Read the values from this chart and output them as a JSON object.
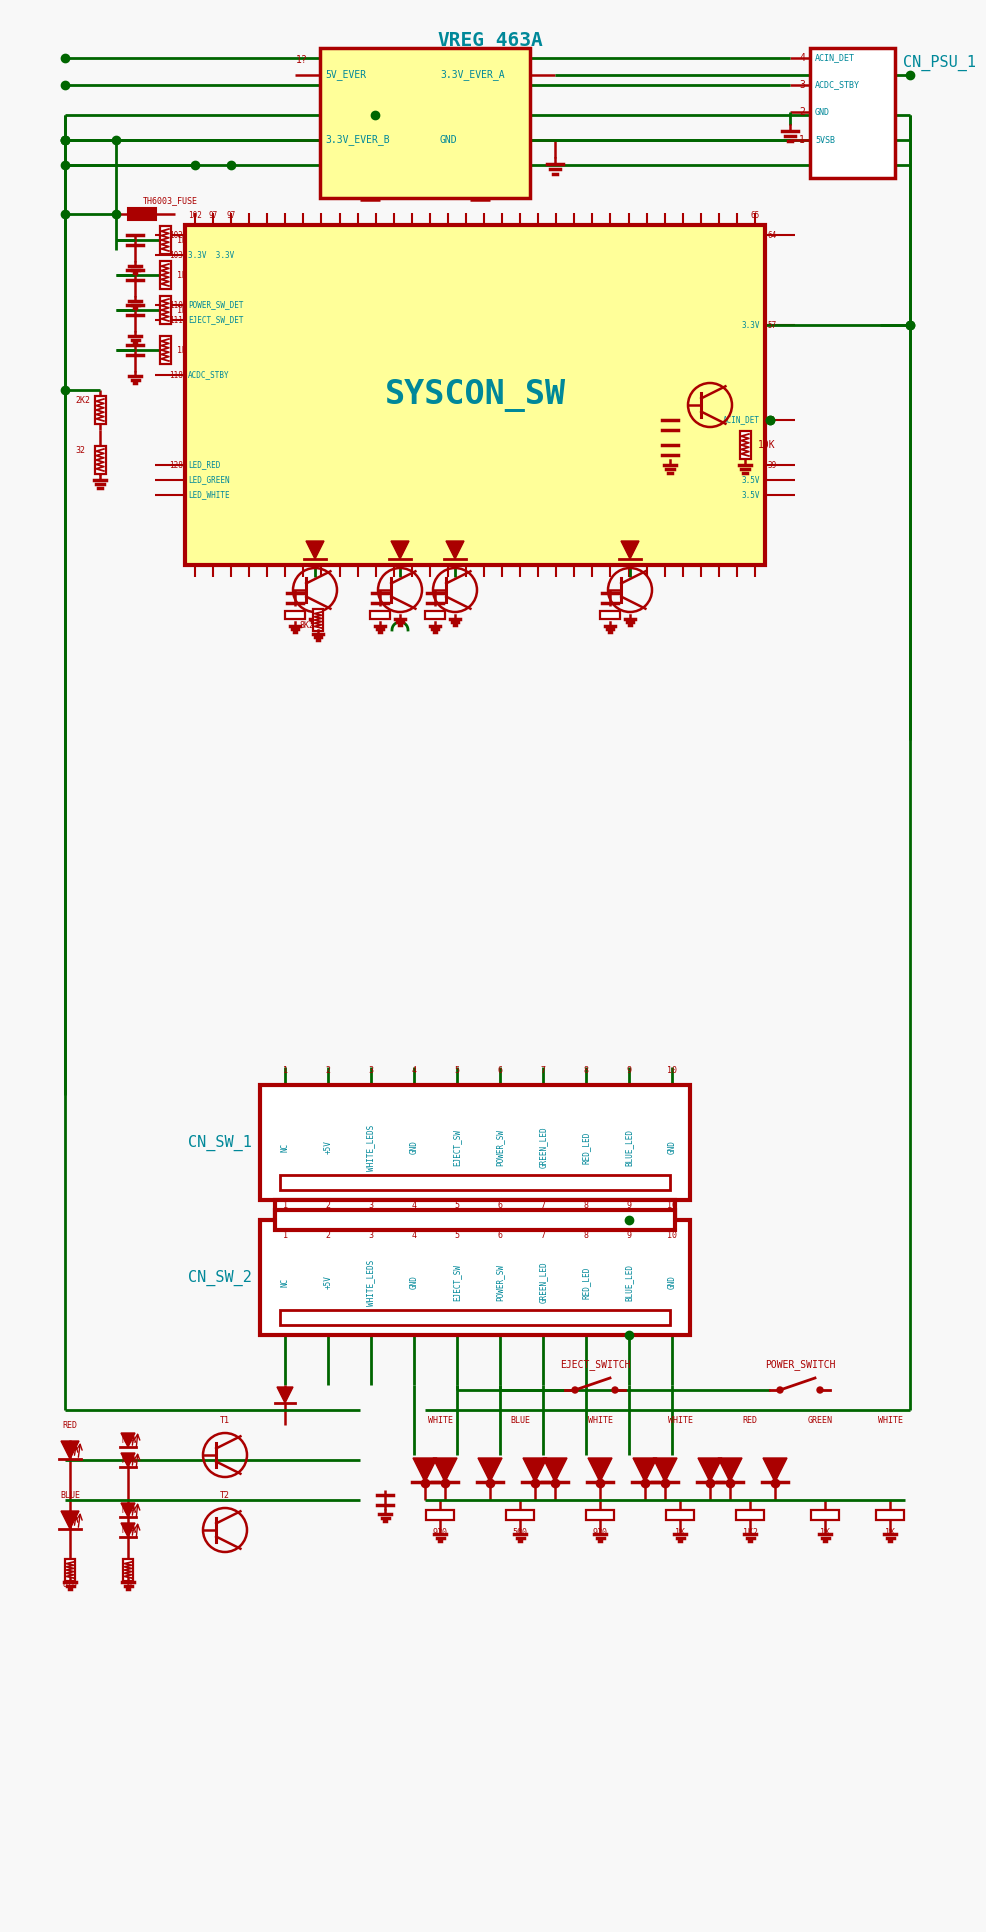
{
  "bg_color": "#ffffff",
  "wire_green": "#006600",
  "wire_red": "#aa0000",
  "ic_fill": "#ffff99",
  "ic_border": "#aa0000",
  "text_cyan": "#008899",
  "text_red": "#aa0000",
  "title": "VREG_463A",
  "syscon_label": "SYSCON_SW",
  "cn_psu_label": "CN_PSU_1",
  "cn_sw1_label": "CN_SW_1",
  "cn_sw2_label": "CN_SW_2",
  "eject_sw_label": "EJECT_SWITCH",
  "power_sw_label": "POWER_SWITCH",
  "fuse_label": "TH6003_FUSE",
  "pin_labels_sw": [
    "NC",
    "+5V",
    "WHITE_LEDS",
    "GND",
    "EJECT_SW",
    "POWER_SW",
    "GREEN_LED",
    "RED_LED",
    "BLUE_LED",
    "GND"
  ]
}
